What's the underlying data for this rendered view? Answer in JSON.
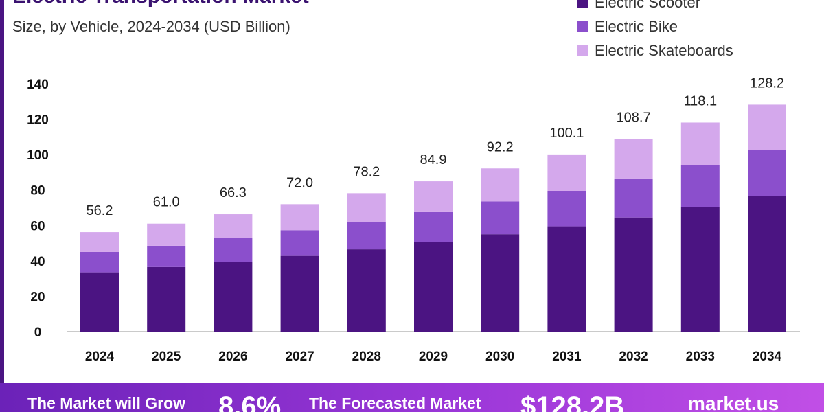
{
  "header": {
    "title": "Electric Transportation Market",
    "subtitle": "Size, by Vehicle, 2024-2034 (USD Billion)"
  },
  "legend": {
    "items": [
      {
        "label": "Electric Scooter",
        "color": "#4b1482"
      },
      {
        "label": "Electric Bike",
        "color": "#8b4fcc"
      },
      {
        "label": "Electric Skateboards",
        "color": "#d4a8ec"
      }
    ]
  },
  "chart_data": {
    "type": "bar",
    "stacked": true,
    "categories": [
      "2024",
      "2025",
      "2026",
      "2027",
      "2028",
      "2029",
      "2030",
      "2031",
      "2032",
      "2033",
      "2034"
    ],
    "series": [
      {
        "name": "Electric Scooter",
        "color": "#4b1482",
        "values": [
          33.5,
          36.5,
          39.5,
          42.8,
          46.5,
          50.5,
          55.0,
          59.5,
          64.5,
          70.2,
          76.5
        ]
      },
      {
        "name": "Electric Bike",
        "color": "#8b4fcc",
        "values": [
          11.5,
          12.0,
          13.3,
          14.5,
          15.5,
          17.0,
          18.5,
          20.0,
          22.0,
          23.8,
          26.0
        ]
      },
      {
        "name": "Electric Skateboards",
        "color": "#d4a8ec",
        "values": [
          11.2,
          12.5,
          13.5,
          14.7,
          16.2,
          17.4,
          18.7,
          20.6,
          22.2,
          24.1,
          25.7
        ]
      }
    ],
    "totals": [
      "56.2",
      "61.0",
      "66.3",
      "72.0",
      "78.2",
      "84.9",
      "92.2",
      "100.1",
      "108.7",
      "118.1",
      "128.2"
    ],
    "yticks": [
      0,
      20,
      40,
      60,
      80,
      100,
      120,
      140
    ],
    "ylim": [
      0,
      140
    ],
    "grid": false,
    "legend_position": "top-right"
  },
  "footer": {
    "grow_text": "The Market will Grow",
    "cagr": "8.6%",
    "forecast_text": "The Forecasted Market",
    "forecast_value": "$128.2B",
    "brand": "market.us"
  }
}
